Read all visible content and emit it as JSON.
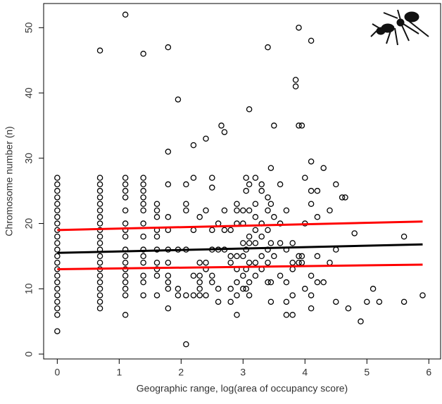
{
  "chart_data": {
    "type": "scatter",
    "x_label": "Geographic range, log(area of occupancy score)",
    "y_label": "Chromosome number (n)",
    "xlim": [
      -0.22,
      6.19
    ],
    "ylim": [
      -0.75,
      53.7
    ],
    "xticks": [
      0,
      1,
      2,
      3,
      4,
      5,
      6
    ],
    "yticks": [
      0,
      10,
      20,
      30,
      40,
      50
    ],
    "x": [
      0,
      0,
      0,
      0,
      0,
      0,
      0,
      0,
      0,
      0,
      0,
      0,
      0,
      0,
      0,
      0,
      0,
      0,
      0,
      0,
      0,
      0,
      0,
      0.69,
      0.69,
      0.69,
      0.69,
      0.69,
      0.69,
      0.69,
      0.69,
      0.69,
      0.69,
      0.69,
      0.69,
      0.69,
      0.69,
      0.69,
      0.69,
      0.69,
      0.69,
      0.69,
      0.69,
      0.69,
      0.69,
      1.1,
      1.1,
      1.1,
      1.1,
      1.1,
      1.1,
      1.1,
      1.1,
      1.1,
      1.1,
      1.1,
      1.1,
      1.1,
      1.1,
      1.1,
      1.1,
      1.1,
      1.1,
      1.39,
      1.39,
      1.39,
      1.39,
      1.39,
      1.39,
      1.39,
      1.39,
      1.39,
      1.39,
      1.39,
      1.39,
      1.39,
      1.39,
      1.39,
      1.61,
      1.61,
      1.61,
      1.61,
      1.61,
      1.61,
      1.61,
      1.61,
      1.61,
      1.61,
      1.79,
      1.79,
      1.79,
      1.79,
      1.79,
      1.79,
      1.79,
      1.79,
      1.79,
      1.79,
      1.79,
      1.95,
      1.95,
      1.95,
      1.95,
      2.08,
      2.08,
      2.08,
      2.08,
      2.08,
      2.08,
      2.2,
      2.2,
      2.2,
      2.2,
      2.2,
      2.3,
      2.3,
      2.3,
      2.3,
      2.3,
      2.3,
      2.4,
      2.4,
      2.4,
      2.4,
      2.4,
      2.5,
      2.5,
      2.5,
      2.5,
      2.5,
      2.5,
      2.6,
      2.6,
      2.6,
      2.6,
      2.65,
      2.7,
      2.7,
      2.7,
      2.7,
      2.8,
      2.8,
      2.8,
      2.8,
      2.8,
      2.9,
      2.9,
      2.9,
      2.9,
      2.9,
      2.9,
      2.9,
      2.9,
      3.0,
      3.0,
      3.0,
      3.0,
      3.0,
      3.0,
      3.05,
      3.05,
      3.05,
      3.05,
      3.05,
      3.1,
      3.1,
      3.1,
      3.1,
      3.1,
      3.1,
      3.1,
      3.1,
      3.2,
      3.2,
      3.2,
      3.2,
      3.2,
      3.2,
      3.2,
      3.3,
      3.3,
      3.3,
      3.3,
      3.3,
      3.3,
      3.4,
      3.4,
      3.4,
      3.4,
      3.4,
      3.4,
      3.4,
      3.45,
      3.45,
      3.45,
      3.45,
      3.45,
      3.5,
      3.5,
      3.5,
      3.6,
      3.6,
      3.6,
      3.6,
      3.7,
      3.7,
      3.7,
      3.7,
      3.7,
      3.8,
      3.8,
      3.8,
      3.8,
      3.8,
      3.85,
      3.85,
      3.9,
      3.9,
      3.9,
      3.9,
      3.95,
      3.95,
      3.95,
      4.0,
      4.0,
      4.0,
      4.1,
      4.1,
      4.1,
      4.1,
      4.1,
      4.1,
      4.1,
      4.2,
      4.2,
      4.2,
      4.2,
      4.3,
      4.3,
      4.4,
      4.4,
      4.5,
      4.5,
      4.5,
      4.6,
      4.65,
      4.7,
      4.8,
      4.9,
      5.0,
      5.1,
      5.2,
      5.6,
      5.6,
      5.9
    ],
    "series": [
      {
        "color": "#000000",
        "values": [
          3.5,
          6,
          7,
          8,
          9,
          10,
          11,
          12,
          13,
          14,
          15,
          16,
          17,
          18,
          19,
          20,
          21,
          22,
          23,
          24,
          25,
          26,
          27,
          7,
          8,
          9,
          10,
          11,
          12,
          13,
          14,
          15,
          16,
          17,
          18,
          19,
          20,
          21,
          22,
          23,
          24,
          25,
          26,
          27,
          46.5,
          6,
          9,
          10,
          11,
          12,
          13,
          14,
          15,
          16,
          18,
          19,
          20,
          22,
          24,
          25,
          26,
          27,
          52,
          9,
          11,
          12,
          14,
          15,
          16,
          18,
          20,
          22,
          23,
          24,
          25,
          26,
          27,
          46,
          9,
          12,
          13,
          14,
          16,
          18,
          19,
          21,
          22,
          23,
          7,
          10,
          11,
          12,
          14,
          16,
          19,
          21,
          26,
          31,
          47,
          9,
          10,
          16,
          39,
          1.5,
          9,
          16,
          22,
          23,
          26,
          9,
          12,
          19,
          27,
          32,
          9,
          10,
          11,
          12,
          14,
          21,
          9,
          13,
          14,
          22,
          33,
          11,
          12,
          16,
          19,
          25.5,
          27,
          8,
          10,
          16,
          20,
          35,
          16,
          19,
          22,
          34,
          8,
          10,
          14,
          15,
          19,
          6,
          9,
          11,
          13,
          15,
          20,
          22,
          23,
          10,
          12,
          15,
          17,
          20,
          22,
          10,
          13,
          16,
          25,
          27,
          9,
          11,
          14,
          17,
          18,
          22,
          26,
          37.5,
          12,
          14,
          17,
          19,
          21,
          23,
          27,
          13,
          15,
          18,
          20,
          25,
          26,
          11,
          14,
          16,
          19,
          22,
          24,
          47,
          8,
          11,
          17,
          23,
          28.5,
          15,
          21,
          35,
          12,
          17,
          20,
          26,
          6,
          8,
          11,
          16,
          22,
          6,
          9,
          13,
          14,
          17,
          42,
          41,
          14,
          15,
          35,
          50,
          14,
          15,
          35,
          10,
          20,
          27,
          7,
          9,
          12,
          23,
          25,
          29.5,
          48,
          11,
          15,
          21,
          25,
          11,
          28.5,
          14,
          22,
          8,
          16,
          26,
          24,
          24,
          7,
          18.5,
          5,
          8,
          10,
          8,
          8,
          18,
          9
        ]
      }
    ],
    "fit_lines": [
      {
        "color": "#ff0000",
        "x": [
          0,
          5.9
        ],
        "values": [
          19,
          20.3
        ]
      },
      {
        "color": "#ff0000",
        "x": [
          0,
          5.9
        ],
        "values": [
          13,
          13.7
        ]
      },
      {
        "color": "#000000",
        "x": [
          0,
          5.9
        ],
        "values": [
          15.5,
          16.8
        ]
      }
    ]
  }
}
